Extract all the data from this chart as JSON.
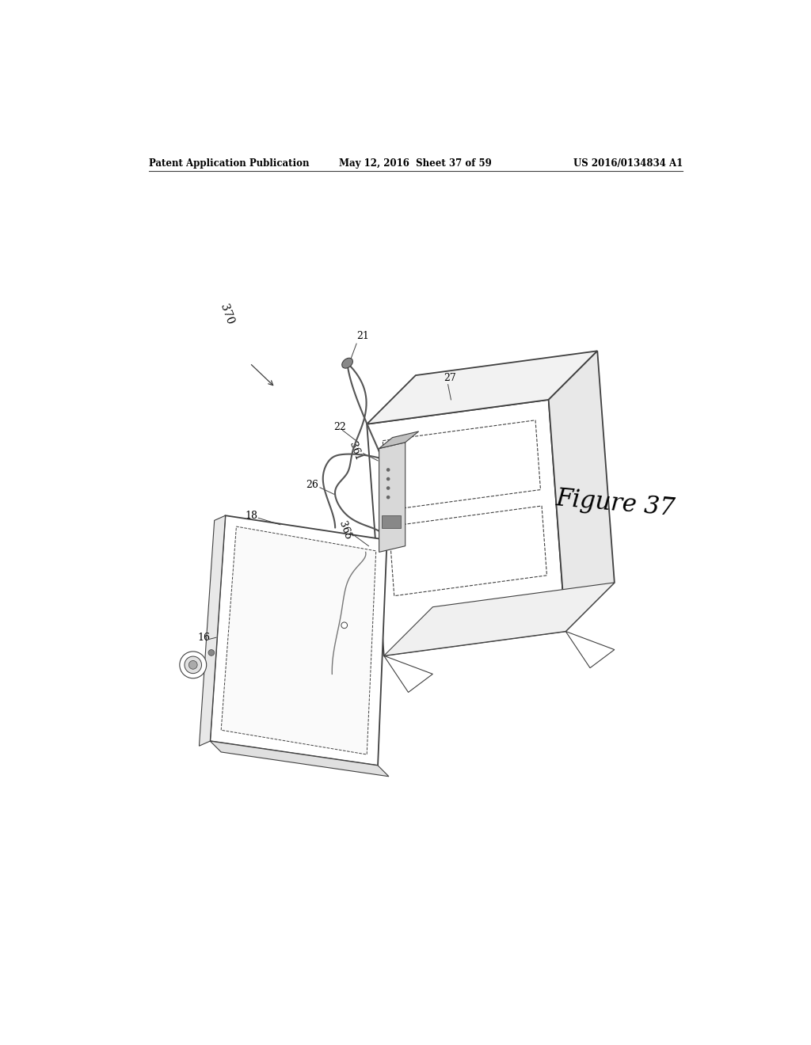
{
  "background_color": "#ffffff",
  "header_left": "Patent Application Publication",
  "header_center": "May 12, 2016  Sheet 37 of 59",
  "header_right": "US 2016/0134834 A1",
  "figure_label": "Figure 37",
  "line_color": "#404040",
  "text_color": "#000000",
  "label_fontsize": 9,
  "header_fontsize": 8.5
}
